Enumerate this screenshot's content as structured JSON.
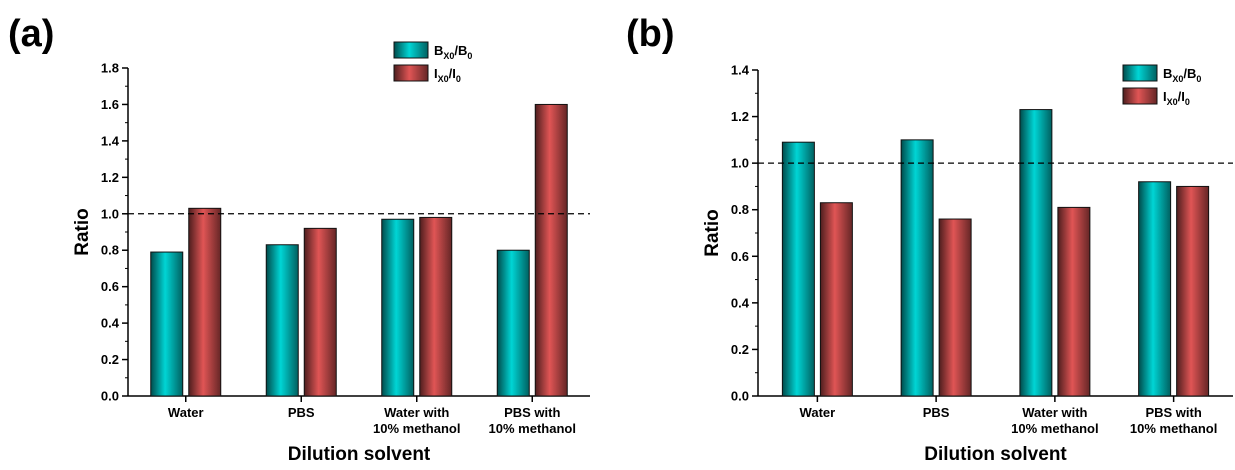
{
  "chart_data": [
    {
      "type": "bar",
      "panel_label": "(a)",
      "categories": [
        [
          "Water"
        ],
        [
          "PBS"
        ],
        [
          "Water with",
          "10% methanol"
        ],
        [
          "PBS with",
          "10% methanol"
        ]
      ],
      "series": [
        {
          "name_main": "B",
          "name_sub1": "X0",
          "name_mid": "/B",
          "name_sub2": "0",
          "color": "#00d5d5",
          "values": [
            0.79,
            0.83,
            0.97,
            0.8
          ]
        },
        {
          "name_main": "I",
          "name_sub1": "X0",
          "name_mid": "/I",
          "name_sub2": "0",
          "color": "#e05555",
          "values": [
            1.03,
            0.92,
            0.98,
            1.6
          ]
        }
      ],
      "xlabel": "Dilution solvent",
      "ylabel": "Ratio",
      "ylim": [
        0,
        1.8
      ],
      "yticks": [
        "0.0",
        "0.2",
        "0.4",
        "0.6",
        "0.8",
        "1.0",
        "1.2",
        "1.4",
        "1.6",
        "1.8"
      ],
      "reference_line": 1.0,
      "legend": "top-right",
      "grid": false
    },
    {
      "type": "bar",
      "panel_label": "(b)",
      "categories": [
        [
          "Water"
        ],
        [
          "PBS"
        ],
        [
          "Water with",
          "10% methanol"
        ],
        [
          "PBS with",
          "10% methanol"
        ]
      ],
      "series": [
        {
          "name_main": "B",
          "name_sub1": "X0",
          "name_mid": "/B",
          "name_sub2": "0",
          "color": "#00d5d5",
          "values": [
            1.09,
            1.1,
            1.23,
            0.92
          ]
        },
        {
          "name_main": "I",
          "name_sub1": "X0",
          "name_mid": "/I",
          "name_sub2": "0",
          "color": "#e05555",
          "values": [
            0.83,
            0.76,
            0.81,
            0.9
          ]
        }
      ],
      "xlabel": "Dilution solvent",
      "ylabel": "Ratio",
      "ylim": [
        0,
        1.4
      ],
      "yticks": [
        "0.0",
        "0.2",
        "0.4",
        "0.6",
        "0.8",
        "1.0",
        "1.2",
        "1.4"
      ],
      "reference_line": 1.0,
      "legend": "top-right",
      "grid": false
    }
  ]
}
